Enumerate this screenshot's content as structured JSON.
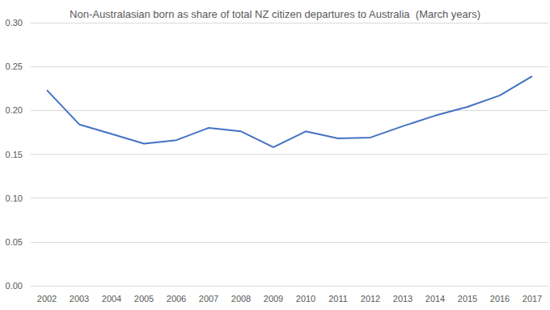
{
  "chart_data": {
    "type": "line",
    "title": "Non-Australasian born as share of total NZ citizen departures to Australia  (March years)",
    "categories": [
      "2002",
      "2003",
      "2004",
      "2005",
      "2006",
      "2007",
      "2008",
      "2009",
      "2010",
      "2011",
      "2012",
      "2013",
      "2014",
      "2015",
      "2016",
      "2017"
    ],
    "values": [
      0.223,
      0.184,
      0.173,
      0.162,
      0.166,
      0.18,
      0.176,
      0.158,
      0.176,
      0.168,
      0.169,
      0.182,
      0.194,
      0.204,
      0.217,
      0.239
    ],
    "color": "#4472c4",
    "ylim": [
      0,
      0.3
    ],
    "yticks": [
      {
        "value": 0,
        "label": "0.00"
      },
      {
        "value": 0.05,
        "label": "0.05"
      },
      {
        "value": 0.1,
        "label": "0.10"
      },
      {
        "value": 0.15,
        "label": "0.15"
      },
      {
        "value": 0.2,
        "label": "0.20"
      },
      {
        "value": 0.25,
        "label": "0.25"
      },
      {
        "value": 0.3,
        "label": "0.30"
      }
    ],
    "grid": true
  }
}
